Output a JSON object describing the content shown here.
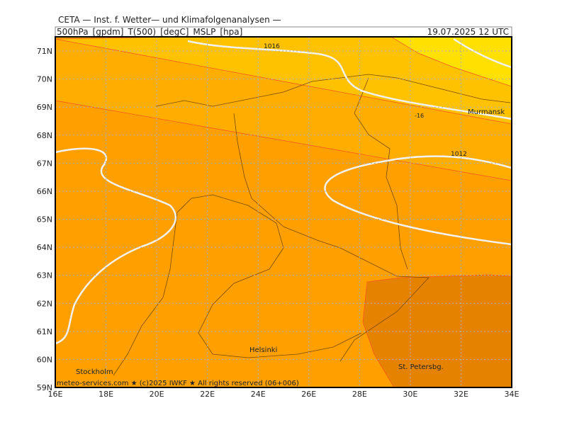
{
  "header": {
    "title": "CETA — Inst. f. Wetter— und Klimafolgenanalysen —",
    "subtitle": "500hPa_[gpdm]_T(500)_[degC]_MSLP_[hpa]",
    "date": "19.07.2025  12 UTC"
  },
  "map": {
    "lat_ticks": [
      {
        "value": 71,
        "label": "71N"
      },
      {
        "value": 70,
        "label": "70N"
      },
      {
        "value": 69,
        "label": "69N"
      },
      {
        "value": 68,
        "label": "68N"
      },
      {
        "value": 67,
        "label": "67N"
      },
      {
        "value": 66,
        "label": "66N"
      },
      {
        "value": 65,
        "label": "65N"
      },
      {
        "value": 64,
        "label": "64N"
      },
      {
        "value": 63,
        "label": "63N"
      },
      {
        "value": 62,
        "label": "62N"
      },
      {
        "value": 61,
        "label": "61N"
      },
      {
        "value": 60,
        "label": "60N"
      },
      {
        "value": 59,
        "label": "59N"
      }
    ],
    "lon_ticks": [
      {
        "value": 16,
        "label": "16E"
      },
      {
        "value": 18,
        "label": "18E"
      },
      {
        "value": 20,
        "label": "20E"
      },
      {
        "value": 22,
        "label": "22E"
      },
      {
        "value": 24,
        "label": "24E"
      },
      {
        "value": 26,
        "label": "26E"
      },
      {
        "value": 28,
        "label": "28E"
      },
      {
        "value": 30,
        "label": "30E"
      },
      {
        "value": 32,
        "label": "32E"
      },
      {
        "value": 34,
        "label": "34E"
      }
    ],
    "places": [
      "Murmansk",
      "Helsinki",
      "Stockholm",
      "St. Petersbg."
    ],
    "isobar_labels": [
      "1016",
      "1012"
    ],
    "temperature_label": "-16",
    "footer": "meteo-services.com ★ (c)2025 IWKF ★ All rights reserved (06+006)"
  }
}
